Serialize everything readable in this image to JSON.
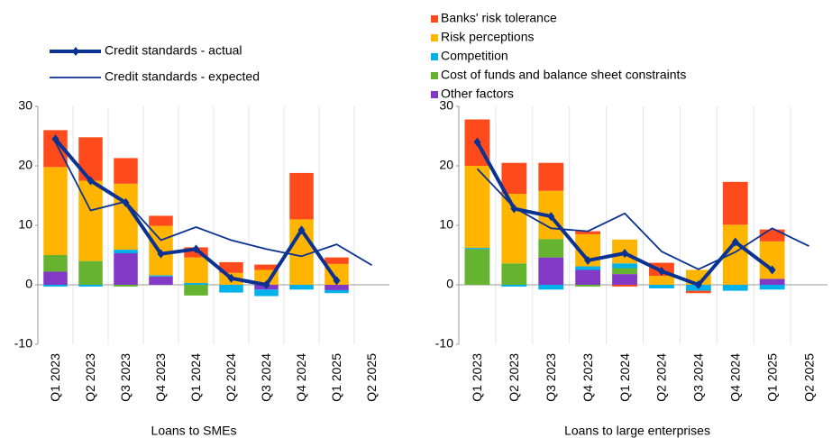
{
  "chart_data": [
    {
      "type": "bar",
      "title": "Loans to SMEs",
      "legend": "lines",
      "categories": [
        "Q1 2023",
        "Q2 2023",
        "Q3 2023",
        "Q4 2023",
        "Q1 2024",
        "Q2 2024",
        "Q3 2024",
        "Q4 2024",
        "Q1 2025",
        "Q2 2025"
      ],
      "ylim": [
        -10,
        30
      ],
      "yticks": [
        30,
        20,
        10,
        0,
        -10
      ],
      "series": [
        {
          "name": "Other factors",
          "color": "#8139c6",
          "values": [
            2.2,
            0,
            5.3,
            1.4,
            0,
            0,
            -0.8,
            0,
            -0.9,
            null
          ]
        },
        {
          "name": "Cost of funds and balance sheet constraints",
          "color": "#65b32e",
          "values": [
            2.8,
            4.0,
            -0.3,
            0,
            -1.8,
            0,
            0,
            0,
            0,
            null
          ]
        },
        {
          "name": "Competition",
          "color": "#00b1ea",
          "values": [
            -0.3,
            -0.3,
            0.6,
            0.2,
            0.3,
            -1.3,
            -1.1,
            -0.8,
            -0.5,
            null
          ]
        },
        {
          "name": "Risk perceptions",
          "color": "#ffb400",
          "values": [
            14.8,
            13.5,
            11.1,
            8.3,
            4.3,
            2.0,
            2.5,
            11.0,
            3.5,
            null
          ]
        },
        {
          "name": "Banks' risk tolerance",
          "color": "#ff4b1b",
          "values": [
            6.2,
            7.3,
            4.3,
            1.7,
            1.7,
            1.8,
            0.9,
            7.8,
            1.1,
            null
          ]
        }
      ],
      "lines": [
        {
          "name": "Credit standards - actual",
          "color": "#0a3293",
          "width": 4,
          "values": [
            24.5,
            17.5,
            13.8,
            5.2,
            6.0,
            1.1,
            0,
            9.2,
            0.7,
            null
          ]
        },
        {
          "name": "Credit standards - expected",
          "color": "#0a3293",
          "width": 1.8,
          "values": [
            24.0,
            12.5,
            14.0,
            7.5,
            9.7,
            7.5,
            6.0,
            4.8,
            6.8,
            3.3
          ]
        }
      ]
    },
    {
      "type": "bar",
      "title": "Loans to large enterprises",
      "legend": "bars",
      "categories": [
        "Q1 2023",
        "Q2 2023",
        "Q3 2023",
        "Q4 2023",
        "Q1 2024",
        "Q2 2024",
        "Q3 2024",
        "Q4 2024",
        "Q1 2025",
        "Q2 2025"
      ],
      "ylim": [
        -10,
        30
      ],
      "yticks": [
        30,
        20,
        10,
        0,
        -10
      ],
      "series": [
        {
          "name": "Other factors",
          "color": "#8139c6",
          "values": [
            0,
            0,
            4.6,
            2.5,
            1.8,
            0,
            0,
            0,
            1.0,
            null
          ]
        },
        {
          "name": "Cost of funds and balance sheet constraints",
          "color": "#65b32e",
          "values": [
            6.0,
            3.6,
            3.1,
            -0.3,
            1.0,
            0,
            0,
            0,
            0,
            null
          ]
        },
        {
          "name": "Competition",
          "color": "#00b1ea",
          "values": [
            0.2,
            -0.3,
            -0.8,
            0.6,
            0.8,
            -0.6,
            -1.0,
            -1.0,
            -0.8,
            null
          ]
        },
        {
          "name": "Risk perceptions",
          "color": "#ffb400",
          "values": [
            13.8,
            11.7,
            8.1,
            5.4,
            4.0,
            1.5,
            2.5,
            10.1,
            6.3,
            null
          ]
        },
        {
          "name": "Banks' risk tolerance",
          "color": "#ff4b1b",
          "values": [
            7.8,
            5.2,
            4.7,
            0.5,
            -0.3,
            2.2,
            -0.4,
            7.2,
            2.0,
            null
          ]
        }
      ],
      "lines": [
        {
          "name": "Credit standards - actual",
          "color": "#0a3293",
          "width": 4,
          "values": [
            24.0,
            12.8,
            11.5,
            4.1,
            5.3,
            2.3,
            0,
            7.2,
            2.5,
            null
          ]
        },
        {
          "name": "Credit standards - expected",
          "color": "#0a3293",
          "width": 1.8,
          "values": [
            19.5,
            13.0,
            9.5,
            9.0,
            12.0,
            5.6,
            2.6,
            5.5,
            9.5,
            6.5
          ]
        }
      ]
    }
  ]
}
